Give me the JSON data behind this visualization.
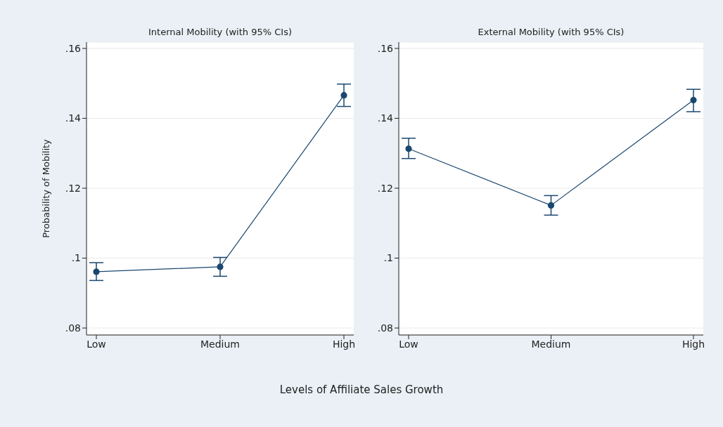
{
  "chart_data": [
    {
      "type": "line",
      "title": "Internal Mobility (with 95% CIs)",
      "ylabel": "Probability of Mobility",
      "xlabel": "Levels of Affiliate Sales Growth",
      "categories": [
        "Low",
        "Medium",
        "High"
      ],
      "series": [
        {
          "color": "#1a476f",
          "values": [
            0.0961,
            0.0975,
            0.1466
          ],
          "errors": [
            [
              0.0936,
              0.0987
            ],
            [
              0.0948,
              0.1002
            ],
            [
              0.1434,
              0.1498
            ]
          ]
        }
      ],
      "ylim": [
        0.078,
        0.1618
      ],
      "yticks": [
        {
          "value": 0.08,
          "label": ".08"
        },
        {
          "value": 0.1,
          "label": ".1"
        },
        {
          "value": 0.12,
          "label": ".12"
        },
        {
          "value": 0.14,
          "label": ".14"
        },
        {
          "value": 0.16,
          "label": ".16"
        }
      ],
      "grid": "y",
      "marker": "circle",
      "legend": false
    },
    {
      "type": "line",
      "title": "External Mobility (with 95% CIs)",
      "categories": [
        "Low",
        "Medium",
        "High"
      ],
      "series": [
        {
          "color": "#1a476f",
          "values": [
            0.1313,
            0.1151,
            0.1452
          ],
          "errors": [
            [
              0.1285,
              0.1343
            ],
            [
              0.1123,
              0.1179
            ],
            [
              0.1419,
              0.1483
            ]
          ]
        }
      ],
      "ylim": [
        0.078,
        0.1618
      ],
      "yticks": [
        {
          "value": 0.08,
          "label": ".08"
        },
        {
          "value": 0.1,
          "label": ".1"
        },
        {
          "value": 0.12,
          "label": ".12"
        },
        {
          "value": 0.14,
          "label": ".14"
        },
        {
          "value": 0.16,
          "label": ".16"
        }
      ],
      "grid": "y",
      "marker": "circle",
      "legend": false
    }
  ]
}
